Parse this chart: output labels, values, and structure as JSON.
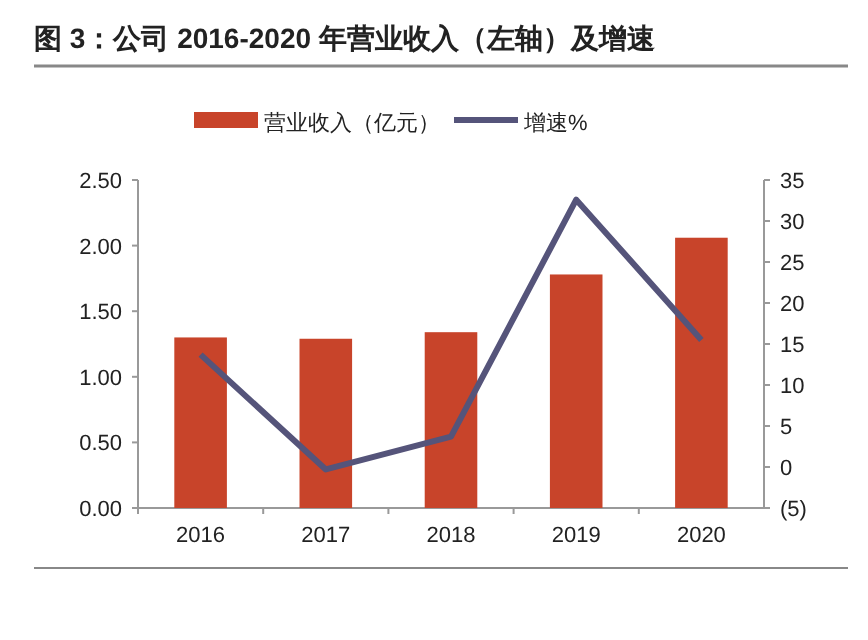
{
  "chart_data": {
    "type": "bar",
    "title": "图 3：公司 2016-2020 年营业收入（左轴）及增速",
    "categories": [
      "2016",
      "2017",
      "2018",
      "2019",
      "2020"
    ],
    "series": [
      {
        "name": "营业收入（亿元）",
        "color": "#c8442a",
        "values": [
          1.3,
          1.29,
          1.34,
          1.78,
          2.06
        ]
      },
      {
        "name": "增速%",
        "type": "line",
        "axis": "y2",
        "color": "#55547a",
        "values": [
          13.7,
          -0.3,
          3.7,
          32.6,
          15.5
        ]
      }
    ],
    "ylim": [
      0,
      2.5
    ],
    "yticks": [
      {
        "value": 0,
        "label": "0.00"
      },
      {
        "value": 0.5,
        "label": "0.50"
      },
      {
        "value": 1,
        "label": "1.00"
      },
      {
        "value": 1.5,
        "label": "1.50"
      },
      {
        "value": 2,
        "label": "2.00"
      },
      {
        "value": 2.5,
        "label": "2.50"
      }
    ],
    "y2lim": [
      -5,
      35
    ],
    "y2ticks": [
      {
        "value": -5,
        "label": "(5)"
      },
      0,
      5,
      10,
      15,
      20,
      25,
      30,
      35
    ],
    "legend": "top"
  }
}
